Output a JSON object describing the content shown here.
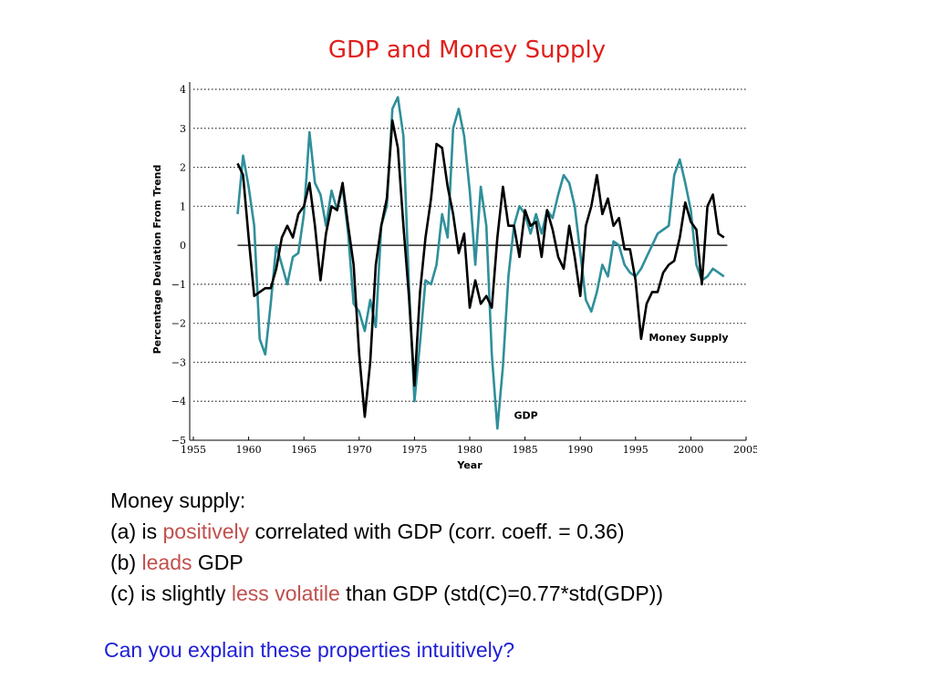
{
  "slide": {
    "title": "GDP and Money Supply"
  },
  "notes": {
    "line1": "Money supply:",
    "line2": {
      "pre": "(a) is ",
      "hl": "positively",
      "post": " correlated with GDP (corr. coeff. = 0.36)"
    },
    "line3": {
      "pre": "(b) ",
      "hl": "leads",
      "post": " GDP"
    },
    "line4": {
      "pre": "(c) is slightly ",
      "hl": "less volatile",
      "post": " than GDP (std(C)=0.77*std(GDP))"
    }
  },
  "question": "Can you explain these properties intuitively?",
  "colors": {
    "title": "#e0201b",
    "highlight": "#c0504d",
    "question": "#1f1fd6",
    "money_series": "#000000",
    "gdp_series": "#2f8f9a"
  },
  "chart_data": {
    "type": "line",
    "xlabel": "Year",
    "ylabel": "Percentage Deviation From Trend",
    "xlim": [
      1955,
      2005
    ],
    "ylim": [
      -5,
      4
    ],
    "xticks": [
      "1955",
      "1960",
      "1965",
      "1970",
      "1975",
      "1980",
      "1985",
      "1990",
      "1995",
      "2000",
      "2005"
    ],
    "yticks": [
      "4",
      "3",
      "2",
      "1",
      "0",
      "−1",
      "−2",
      "−3",
      "−4",
      "−5"
    ],
    "grid": "horizontal dotted",
    "series": [
      {
        "name": "Money Supply",
        "x": [
          1959.0,
          1959.5,
          1960.0,
          1960.5,
          1961.0,
          1961.5,
          1962.0,
          1962.5,
          1963.0,
          1963.5,
          1964.0,
          1964.5,
          1965.0,
          1965.5,
          1966.0,
          1966.5,
          1967.0,
          1967.5,
          1968.0,
          1968.5,
          1969.0,
          1969.5,
          1970.0,
          1970.5,
          1971.0,
          1971.5,
          1972.0,
          1972.5,
          1973.0,
          1973.5,
          1974.0,
          1974.5,
          1975.0,
          1975.5,
          1976.0,
          1976.5,
          1977.0,
          1977.5,
          1978.0,
          1978.5,
          1979.0,
          1979.5,
          1980.0,
          1980.5,
          1981.0,
          1981.5,
          1982.0,
          1982.5,
          1983.0,
          1983.5,
          1984.0,
          1984.5,
          1985.0,
          1985.5,
          1986.0,
          1986.5,
          1987.0,
          1987.5,
          1988.0,
          1988.5,
          1989.0,
          1989.5,
          1990.0,
          1990.5,
          1991.0,
          1991.5,
          1992.0,
          1992.5,
          1993.0,
          1993.5,
          1994.0,
          1994.5,
          1995.0,
          1995.5,
          1996.0,
          1996.5,
          1997.0,
          1997.5,
          1998.0,
          1998.5,
          1999.0,
          1999.5,
          2000.0,
          2000.5,
          2001.0,
          2001.5,
          2002.0,
          2002.5,
          2003.0
        ],
        "values": [
          2.1,
          1.8,
          0.2,
          -1.3,
          -1.2,
          -1.1,
          -1.1,
          -0.6,
          0.2,
          0.5,
          0.2,
          0.8,
          1.0,
          1.6,
          0.5,
          -0.9,
          0.3,
          1.0,
          0.9,
          1.6,
          0.5,
          -0.5,
          -2.8,
          -4.4,
          -3.0,
          -0.5,
          0.5,
          1.2,
          3.2,
          2.5,
          0.5,
          -1.3,
          -3.6,
          -1.2,
          0.2,
          1.2,
          2.6,
          2.5,
          1.5,
          0.8,
          -0.2,
          0.3,
          -1.6,
          -0.9,
          -1.5,
          -1.3,
          -1.6,
          0.2,
          1.5,
          0.5,
          0.5,
          -0.3,
          0.9,
          0.5,
          0.6,
          -0.3,
          0.9,
          0.4,
          -0.3,
          -0.6,
          0.5,
          -0.3,
          -1.3,
          0.5,
          1.0,
          1.8,
          0.8,
          1.2,
          0.5,
          0.7,
          -0.1,
          -0.1,
          -0.9,
          -2.4,
          -1.5,
          -1.2,
          -1.2,
          -0.7,
          -0.5,
          -0.4,
          0.2,
          1.1,
          0.6,
          0.4,
          -1.0,
          1.0,
          1.3,
          0.3,
          0.2
        ],
        "label": "Money Supply"
      },
      {
        "name": "GDP",
        "x": [
          1959.0,
          1959.5,
          1960.0,
          1960.5,
          1961.0,
          1961.5,
          1962.0,
          1962.5,
          1963.0,
          1963.5,
          1964.0,
          1964.5,
          1965.0,
          1965.5,
          1966.0,
          1966.5,
          1967.0,
          1967.5,
          1968.0,
          1968.5,
          1969.0,
          1969.5,
          1970.0,
          1970.5,
          1971.0,
          1971.5,
          1972.0,
          1972.5,
          1973.0,
          1973.5,
          1974.0,
          1974.5,
          1975.0,
          1975.5,
          1976.0,
          1976.5,
          1977.0,
          1977.5,
          1978.0,
          1978.5,
          1979.0,
          1979.5,
          1980.0,
          1980.5,
          1981.0,
          1981.5,
          1982.0,
          1982.5,
          1983.0,
          1983.5,
          1984.0,
          1984.5,
          1985.0,
          1985.5,
          1986.0,
          1986.5,
          1987.0,
          1987.5,
          1988.0,
          1988.5,
          1989.0,
          1989.5,
          1990.0,
          1990.5,
          1991.0,
          1991.5,
          1992.0,
          1992.5,
          1993.0,
          1993.5,
          1994.0,
          1994.5,
          1995.0,
          1995.5,
          1996.0,
          1996.5,
          1997.0,
          1997.5,
          1998.0,
          1998.5,
          1999.0,
          1999.5,
          2000.0,
          2000.5,
          2001.0,
          2001.5,
          2002.0,
          2002.5,
          2003.0
        ],
        "values": [
          0.8,
          2.3,
          1.5,
          0.5,
          -2.4,
          -2.8,
          -1.5,
          0.0,
          -0.5,
          -1.0,
          -0.3,
          -0.2,
          0.8,
          2.9,
          1.6,
          1.3,
          0.5,
          1.4,
          0.9,
          1.5,
          0.3,
          -1.5,
          -1.7,
          -2.2,
          -1.4,
          -2.1,
          0.5,
          1.0,
          3.5,
          3.8,
          2.8,
          -1.0,
          -4.0,
          -2.5,
          -0.9,
          -1.0,
          -0.5,
          0.8,
          0.2,
          3.0,
          3.5,
          2.8,
          1.4,
          -0.5,
          1.5,
          0.5,
          -2.8,
          -4.7,
          -3.1,
          -0.8,
          0.5,
          1.0,
          0.8,
          0.3,
          0.8,
          0.3,
          0.9,
          0.7,
          1.3,
          1.8,
          1.6,
          1.0,
          -0.2,
          -1.4,
          -1.7,
          -1.2,
          -0.5,
          -0.8,
          0.1,
          0.0,
          -0.5,
          -0.7,
          -0.8,
          -0.6,
          -0.3,
          0.0,
          0.3,
          0.4,
          0.5,
          1.8,
          2.2,
          1.6,
          0.9,
          -0.5,
          -0.9,
          -0.8,
          -0.6,
          -0.7,
          -0.8
        ],
        "label": "GDP"
      }
    ]
  }
}
